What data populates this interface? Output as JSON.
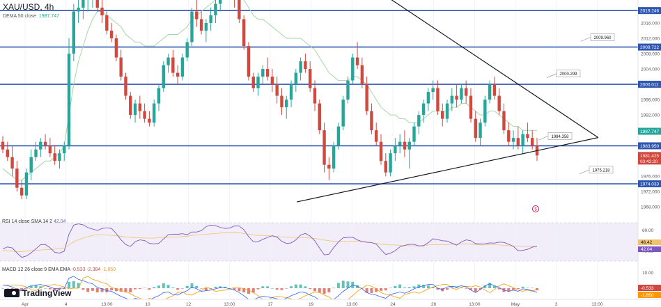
{
  "header": {
    "symbol": "XAU/USD, 4h",
    "dema_label": "DEMA 50 close",
    "dema_value": "1987.747"
  },
  "rsi_header": {
    "label": "RSI 14 close SMA 14 2",
    "value": "42.04"
  },
  "macd_header": {
    "label": "MACD 12 26 close 9 EMA EMA",
    "v1": "-0.533",
    "v2": "-2.384",
    "v3": "-1.850"
  },
  "logo_text": "TradingView",
  "colors": {
    "bull": "#26a69a",
    "bear": "#d1483f",
    "hline": "#2f56b0",
    "dema": "#a5d6a7",
    "trend": "#131722",
    "rsi": "#7e57c2",
    "rsi_ma": "#f0c26b",
    "macd": "#2962ff",
    "signal": "#ff9800"
  },
  "chart_data": {
    "type": "candlestick",
    "price_axis": {
      "ticks": [
        "2016.000",
        "2012.000",
        "2008.000",
        "2004.000",
        "1996.000",
        "1992.000",
        "1976.000",
        "1972.000",
        "1968.000"
      ],
      "ylim": [
        1965.5,
        2022.0
      ]
    },
    "time_axis": {
      "ticks": [
        "Apr",
        "4",
        "13:00",
        "10",
        "12",
        "13:00",
        "17",
        "19",
        "13:00",
        "24",
        "26",
        "13:00",
        "May",
        "3",
        "13:00"
      ]
    },
    "horizontal_levels": [
      {
        "price": 2019.246,
        "label": "2019.246"
      },
      {
        "price": 2009.722,
        "label": "2009.722"
      },
      {
        "price": 2000.011,
        "label": "2000.011"
      },
      {
        "price": 1983.95,
        "label": "1983.950"
      },
      {
        "price": 1974.033,
        "label": "1974.033"
      }
    ],
    "callouts": [
      {
        "label": "2009.960",
        "price": 2012.3
      },
      {
        "label": "2000.299",
        "price": 2002.8
      },
      {
        "label": "1984.358",
        "price": 1986.5
      },
      {
        "label": "1975.218",
        "price": 1977.7
      }
    ],
    "price_badges": [
      {
        "label": "1987.747",
        "kind": "dema"
      },
      {
        "label": "1981.425",
        "kind": "last"
      },
      {
        "label": "03:42:20",
        "kind": "countdown"
      }
    ],
    "triangle": {
      "upper": [
        [
          0.585,
          2022.9
        ],
        [
          0.905,
          1986.1
        ]
      ],
      "lower": [
        [
          0.449,
          1969.3
        ],
        [
          0.905,
          1986.1
        ]
      ]
    },
    "candles": [
      [
        1985,
        1986.5,
        1982,
        1983
      ],
      [
        1983,
        1985,
        1980,
        1981
      ],
      [
        1981,
        1984,
        1976,
        1978
      ],
      [
        1978,
        1980,
        1972,
        1973
      ],
      [
        1973,
        1975,
        1970,
        1971
      ],
      [
        1971,
        1978,
        1970,
        1977
      ],
      [
        1977,
        1983,
        1975,
        1981
      ],
      [
        1981,
        1985,
        1980,
        1983
      ],
      [
        1983,
        1986,
        1981,
        1985
      ],
      [
        1985,
        1987,
        1983,
        1984
      ],
      [
        1984,
        1986,
        1981,
        1982
      ],
      [
        1982,
        1984,
        1979,
        1980
      ],
      [
        1980,
        1983,
        1978,
        1982
      ],
      [
        1982,
        1985,
        1980,
        1984
      ],
      [
        1984,
        2012,
        1983,
        2008
      ],
      [
        2008,
        2021,
        2006,
        2019
      ],
      [
        2019,
        2023,
        2016,
        2020
      ],
      [
        2020,
        2024,
        2017,
        2022
      ],
      [
        2022,
        2025,
        2019,
        2023
      ],
      [
        2023,
        2026,
        2020,
        2024
      ],
      [
        2024,
        2025,
        2019,
        2020
      ],
      [
        2020,
        2022,
        2016,
        2018
      ],
      [
        2018,
        2019,
        2013,
        2014
      ],
      [
        2014,
        2016,
        2011,
        2012
      ],
      [
        2012,
        2013,
        2006,
        2007
      ],
      [
        2007,
        2009,
        2001,
        2002
      ],
      [
        2002,
        2003,
        1996,
        1997
      ],
      [
        1997,
        1998,
        1991,
        1992
      ],
      [
        1992,
        1996,
        1990,
        1995
      ],
      [
        1995,
        1997,
        1991,
        1993
      ],
      [
        1993,
        1995,
        1990,
        1991
      ],
      [
        1991,
        1993,
        1989,
        1990
      ],
      [
        1990,
        1996,
        1989,
        1995
      ],
      [
        1995,
        2000,
        1993,
        1999
      ],
      [
        1999,
        2006,
        1998,
        2005
      ],
      [
        2005,
        2008,
        2003,
        2007
      ],
      [
        2007,
        2009,
        2002,
        2003
      ],
      [
        2003,
        2005,
        2000,
        2002
      ],
      [
        2002,
        2008,
        2001,
        2007
      ],
      [
        2007,
        2012,
        2006,
        2011
      ],
      [
        2011,
        2020,
        2010,
        2019
      ],
      [
        2019,
        2024,
        2015,
        2017
      ],
      [
        2017,
        2019,
        2013,
        2014
      ],
      [
        2014,
        2017,
        2011,
        2016
      ],
      [
        2016,
        2020,
        2014,
        2018
      ],
      [
        2018,
        2022,
        2016,
        2021
      ],
      [
        2021,
        2025,
        2019,
        2024
      ],
      [
        2024,
        2026,
        2022,
        2025
      ],
      [
        2025,
        2028,
        2023,
        2024
      ],
      [
        2024,
        2026,
        2020,
        2022
      ],
      [
        2022,
        2023,
        2016,
        2017
      ],
      [
        2017,
        2018,
        2009,
        2010
      ],
      [
        2010,
        2011,
        2001,
        2002
      ],
      [
        2002,
        2003,
        1998,
        1999
      ],
      [
        1999,
        2003,
        1997,
        2002
      ],
      [
        2002,
        2005,
        2000,
        2004
      ],
      [
        2004,
        2007,
        2001,
        2002
      ],
      [
        2002,
        2004,
        1998,
        2000
      ],
      [
        2000,
        2002,
        1995,
        1997
      ],
      [
        1997,
        1999,
        1992,
        1994
      ],
      [
        1994,
        1997,
        1991,
        1996
      ],
      [
        1996,
        2001,
        1994,
        2000
      ],
      [
        2000,
        2004,
        1998,
        2003
      ],
      [
        2003,
        2007,
        2001,
        2006
      ],
      [
        2006,
        2008,
        2003,
        2004
      ],
      [
        2004,
        2006,
        1998,
        1999
      ],
      [
        1999,
        2001,
        1993,
        1995
      ],
      [
        1995,
        1996,
        1987,
        1988
      ],
      [
        1988,
        1990,
        1977,
        1979
      ],
      [
        1979,
        1981,
        1975,
        1978
      ],
      [
        1978,
        1985,
        1977,
        1984
      ],
      [
        1984,
        1990,
        1983,
        1989
      ],
      [
        1989,
        1997,
        1988,
        1996
      ],
      [
        1996,
        2002,
        1995,
        2001
      ],
      [
        2001,
        2008,
        2000,
        2007
      ],
      [
        2007,
        2011,
        2004,
        2005
      ],
      [
        2005,
        2007,
        1999,
        2000
      ],
      [
        2000,
        2002,
        1992,
        1993
      ],
      [
        1993,
        1995,
        1987,
        1988
      ],
      [
        1988,
        1990,
        1984,
        1985
      ],
      [
        1985,
        1987,
        1979,
        1980
      ],
      [
        1980,
        1982,
        1976,
        1977
      ],
      [
        1977,
        1983,
        1976,
        1982
      ],
      [
        1982,
        1986,
        1980,
        1984
      ],
      [
        1984,
        1987,
        1982,
        1985
      ],
      [
        1985,
        1988,
        1981,
        1983
      ],
      [
        1983,
        1986,
        1978,
        1985
      ],
      [
        1985,
        1990,
        1984,
        1989
      ],
      [
        1989,
        1993,
        1987,
        1992
      ],
      [
        1992,
        1996,
        1990,
        1995
      ],
      [
        1995,
        1999,
        1993,
        1998
      ],
      [
        1998,
        2001,
        1996,
        1999
      ],
      [
        1999,
        2001,
        1992,
        1993
      ],
      [
        1993,
        1995,
        1989,
        1991
      ],
      [
        1991,
        1996,
        1990,
        1995
      ],
      [
        1995,
        1999,
        1993,
        1997
      ],
      [
        1997,
        2000,
        1994,
        1996
      ],
      [
        1996,
        2000,
        1995,
        1999
      ],
      [
        1999,
        2001,
        1995,
        1997
      ],
      [
        1997,
        1999,
        1990,
        1991
      ],
      [
        1991,
        1993,
        1985,
        1986
      ],
      [
        1986,
        1991,
        1984,
        1990
      ],
      [
        1990,
        1997,
        1989,
        1996
      ],
      [
        1996,
        2001,
        1995,
        2000
      ],
      [
        2000,
        2002,
        1996,
        1997
      ],
      [
        1997,
        1999,
        1992,
        1993
      ],
      [
        1993,
        1995,
        1987,
        1988
      ],
      [
        1988,
        1990,
        1984,
        1985
      ],
      [
        1985,
        1988,
        1983,
        1986
      ],
      [
        1986,
        1989,
        1983,
        1984
      ],
      [
        1984,
        1988,
        1982,
        1987
      ],
      [
        1987,
        1990,
        1985,
        1986
      ],
      [
        1986,
        1988,
        1983,
        1984
      ],
      [
        1984,
        1986,
        1980,
        1981.425
      ]
    ],
    "dema": [
      1978,
      1977,
      1976,
      1975,
      1975,
      1976,
      1977,
      1978,
      1979,
      1980,
      1980,
      1981,
      1982,
      1984,
      1992,
      2000,
      2006,
      2010,
      2014,
      2017,
      2019,
      2019,
      2018,
      2017,
      2016,
      2015,
      2013,
      2012,
      2011,
      2011,
      2010,
      2010,
      2010,
      2011,
      2012,
      2013,
      2013,
      2013,
      2014,
      2015,
      2017,
      2018,
      2019,
      2020,
      2021,
      2022,
      2023,
      2024,
      2025,
      2025,
      2024,
      2022,
      2020,
      2018,
      2017,
      2017,
      2016,
      2015,
      2014,
      2013,
      2012,
      2012,
      2012,
      2012,
      2011,
      2010,
      2009,
      2007,
      2005,
      2003,
      2002,
      2001,
      2001,
      2001,
      2002,
      2002,
      2001,
      2000,
      1998,
      1996,
      1994,
      1993,
      1992,
      1992,
      1991,
      1991,
      1990,
      1990,
      1990,
      1991,
      1992,
      1993,
      1993,
      1993,
      1993,
      1994,
      1994,
      1995,
      1995,
      1994,
      1993,
      1992,
      1992,
      1993,
      1993,
      1992,
      1991,
      1990,
      1989,
      1989,
      1988,
      1988,
      1988,
      1988
    ]
  }
}
